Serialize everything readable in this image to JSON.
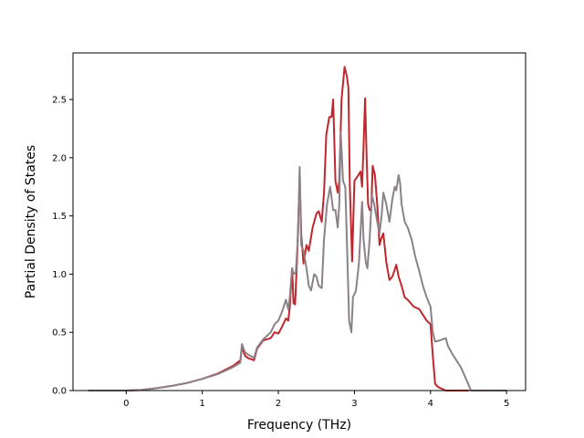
{
  "chart_data": {
    "type": "line",
    "title": "",
    "xlabel": "Frequency (THz)",
    "ylabel": "Partial Density of States",
    "xlim": [
      -0.7,
      5.25
    ],
    "ylim": [
      0,
      2.9
    ],
    "xticks": [
      0,
      1,
      2,
      3,
      4,
      5
    ],
    "yticks": [
      0.0,
      0.5,
      1.0,
      1.5,
      2.0,
      2.5
    ],
    "xtick_labels": [
      "0",
      "1",
      "2",
      "3",
      "4",
      "5"
    ],
    "ytick_labels": [
      "0.0",
      "0.5",
      "1.0",
      "1.5",
      "2.0",
      "2.5"
    ],
    "grid": false,
    "series": [
      {
        "color": "#c0272d",
        "points": [
          [
            -0.5,
            0.0
          ],
          [
            0.0,
            0.0
          ],
          [
            0.2,
            0.005
          ],
          [
            0.4,
            0.02
          ],
          [
            0.6,
            0.04
          ],
          [
            0.8,
            0.065
          ],
          [
            1.0,
            0.1
          ],
          [
            1.2,
            0.145
          ],
          [
            1.4,
            0.21
          ],
          [
            1.5,
            0.26
          ],
          [
            1.52,
            0.37
          ],
          [
            1.56,
            0.3
          ],
          [
            1.6,
            0.28
          ],
          [
            1.68,
            0.26
          ],
          [
            1.72,
            0.36
          ],
          [
            1.8,
            0.43
          ],
          [
            1.9,
            0.45
          ],
          [
            1.95,
            0.5
          ],
          [
            2.0,
            0.49
          ],
          [
            2.05,
            0.55
          ],
          [
            2.1,
            0.62
          ],
          [
            2.13,
            0.6
          ],
          [
            2.15,
            0.72
          ],
          [
            2.18,
            1.05
          ],
          [
            2.2,
            0.75
          ],
          [
            2.22,
            0.74
          ],
          [
            2.25,
            1.2
          ],
          [
            2.28,
            1.85
          ],
          [
            2.3,
            1.35
          ],
          [
            2.33,
            1.09
          ],
          [
            2.37,
            1.25
          ],
          [
            2.4,
            1.2
          ],
          [
            2.45,
            1.4
          ],
          [
            2.5,
            1.52
          ],
          [
            2.53,
            1.54
          ],
          [
            2.57,
            1.45
          ],
          [
            2.6,
            1.7
          ],
          [
            2.63,
            2.2
          ],
          [
            2.67,
            2.35
          ],
          [
            2.7,
            2.35
          ],
          [
            2.72,
            2.5
          ],
          [
            2.75,
            1.8
          ],
          [
            2.78,
            1.7
          ],
          [
            2.8,
            1.8
          ],
          [
            2.83,
            2.5
          ],
          [
            2.87,
            2.78
          ],
          [
            2.9,
            2.7
          ],
          [
            2.92,
            2.6
          ],
          [
            2.94,
            1.75
          ],
          [
            2.97,
            1.11
          ],
          [
            3.0,
            1.8
          ],
          [
            3.05,
            1.85
          ],
          [
            3.08,
            1.88
          ],
          [
            3.1,
            1.75
          ],
          [
            3.12,
            2.1
          ],
          [
            3.14,
            2.51
          ],
          [
            3.16,
            2.0
          ],
          [
            3.18,
            1.6
          ],
          [
            3.2,
            1.55
          ],
          [
            3.22,
            1.55
          ],
          [
            3.24,
            1.93
          ],
          [
            3.27,
            1.85
          ],
          [
            3.3,
            1.6
          ],
          [
            3.33,
            1.25
          ],
          [
            3.35,
            1.3
          ],
          [
            3.38,
            1.35
          ],
          [
            3.42,
            1.1
          ],
          [
            3.46,
            0.95
          ],
          [
            3.5,
            0.98
          ],
          [
            3.55,
            1.08
          ],
          [
            3.58,
            0.98
          ],
          [
            3.62,
            0.9
          ],
          [
            3.66,
            0.8
          ],
          [
            3.7,
            0.78
          ],
          [
            3.78,
            0.72
          ],
          [
            3.85,
            0.7
          ],
          [
            3.9,
            0.65
          ],
          [
            3.95,
            0.6
          ],
          [
            4.0,
            0.57
          ],
          [
            4.03,
            0.3
          ],
          [
            4.06,
            0.06
          ],
          [
            4.1,
            0.03
          ],
          [
            4.2,
            0.0
          ],
          [
            4.5,
            0.0
          ]
        ]
      },
      {
        "color": "#8b8189",
        "points": [
          [
            -0.5,
            0.0
          ],
          [
            0.0,
            0.0
          ],
          [
            0.2,
            0.005
          ],
          [
            0.4,
            0.02
          ],
          [
            0.6,
            0.04
          ],
          [
            0.8,
            0.065
          ],
          [
            1.0,
            0.1
          ],
          [
            1.2,
            0.14
          ],
          [
            1.4,
            0.2
          ],
          [
            1.5,
            0.24
          ],
          [
            1.52,
            0.4
          ],
          [
            1.56,
            0.33
          ],
          [
            1.6,
            0.31
          ],
          [
            1.68,
            0.28
          ],
          [
            1.72,
            0.37
          ],
          [
            1.8,
            0.44
          ],
          [
            1.9,
            0.5
          ],
          [
            1.95,
            0.57
          ],
          [
            2.0,
            0.6
          ],
          [
            2.05,
            0.68
          ],
          [
            2.1,
            0.78
          ],
          [
            2.13,
            0.7
          ],
          [
            2.15,
            0.8
          ],
          [
            2.18,
            1.05
          ],
          [
            2.2,
            1.0
          ],
          [
            2.23,
            1.02
          ],
          [
            2.26,
            1.35
          ],
          [
            2.28,
            1.92
          ],
          [
            2.3,
            1.25
          ],
          [
            2.33,
            1.2
          ],
          [
            2.37,
            1.05
          ],
          [
            2.4,
            0.9
          ],
          [
            2.43,
            0.86
          ],
          [
            2.47,
            1.0
          ],
          [
            2.5,
            0.98
          ],
          [
            2.53,
            0.9
          ],
          [
            2.57,
            0.88
          ],
          [
            2.6,
            1.3
          ],
          [
            2.64,
            1.6
          ],
          [
            2.68,
            1.75
          ],
          [
            2.72,
            1.55
          ],
          [
            2.75,
            1.55
          ],
          [
            2.78,
            1.4
          ],
          [
            2.8,
            1.6
          ],
          [
            2.82,
            2.22
          ],
          [
            2.85,
            1.8
          ],
          [
            2.88,
            1.75
          ],
          [
            2.9,
            1.3
          ],
          [
            2.93,
            0.6
          ],
          [
            2.96,
            0.5
          ],
          [
            2.98,
            0.8
          ],
          [
            3.02,
            0.86
          ],
          [
            3.06,
            1.1
          ],
          [
            3.1,
            1.62
          ],
          [
            3.12,
            1.3
          ],
          [
            3.15,
            1.1
          ],
          [
            3.17,
            1.05
          ],
          [
            3.2,
            1.3
          ],
          [
            3.23,
            1.68
          ],
          [
            3.26,
            1.6
          ],
          [
            3.3,
            1.45
          ],
          [
            3.33,
            1.35
          ],
          [
            3.36,
            1.52
          ],
          [
            3.38,
            1.7
          ],
          [
            3.42,
            1.6
          ],
          [
            3.46,
            1.45
          ],
          [
            3.5,
            1.65
          ],
          [
            3.53,
            1.75
          ],
          [
            3.55,
            1.72
          ],
          [
            3.58,
            1.85
          ],
          [
            3.6,
            1.78
          ],
          [
            3.62,
            1.6
          ],
          [
            3.66,
            1.45
          ],
          [
            3.7,
            1.4
          ],
          [
            3.75,
            1.3
          ],
          [
            3.8,
            1.15
          ],
          [
            3.85,
            1.03
          ],
          [
            3.9,
            0.9
          ],
          [
            3.95,
            0.8
          ],
          [
            4.0,
            0.72
          ],
          [
            4.03,
            0.5
          ],
          [
            4.06,
            0.42
          ],
          [
            4.12,
            0.43
          ],
          [
            4.2,
            0.45
          ],
          [
            4.23,
            0.38
          ],
          [
            4.3,
            0.3
          ],
          [
            4.4,
            0.2
          ],
          [
            4.5,
            0.05
          ],
          [
            4.53,
            0.0
          ],
          [
            5.0,
            0.0
          ]
        ]
      }
    ]
  }
}
